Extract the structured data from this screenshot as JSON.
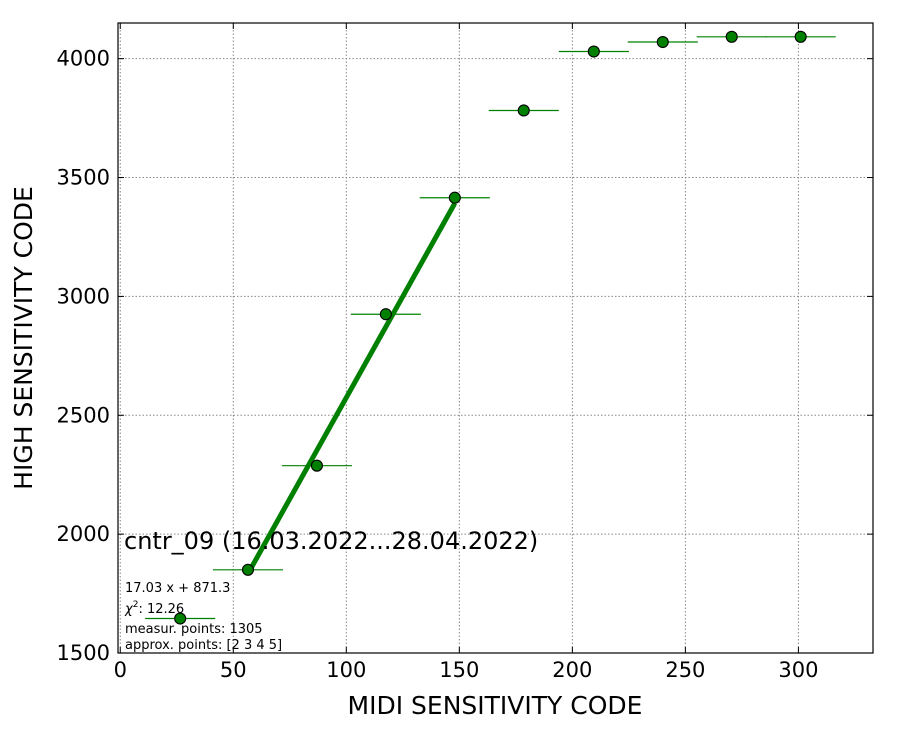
{
  "chart_data": {
    "type": "scatter",
    "title": "",
    "xlabel": "MIDI SENSITIVITY CODE",
    "ylabel": "HIGH SENSITIVITY CODE",
    "xlim": [
      -1,
      333
    ],
    "ylim": [
      1500,
      4150
    ],
    "x_ticks": [
      0,
      50,
      100,
      150,
      200,
      250,
      300
    ],
    "y_ticks": [
      1500,
      2000,
      2500,
      3000,
      3500,
      4000
    ],
    "grid": true,
    "colors": {
      "points": "#008000",
      "edge": "#000000",
      "fit": "#008000",
      "errbar": "#008000"
    },
    "points": [
      {
        "x": 26.5,
        "y": 1645,
        "xerr": 15.5
      },
      {
        "x": 56.5,
        "y": 1850,
        "xerr": 15.5
      },
      {
        "x": 87,
        "y": 2288,
        "xerr": 15.5
      },
      {
        "x": 117.5,
        "y": 2925,
        "xerr": 15.5
      },
      {
        "x": 148,
        "y": 3415,
        "xerr": 15.5
      },
      {
        "x": 178.5,
        "y": 3782,
        "xerr": 15.5
      },
      {
        "x": 209.5,
        "y": 4030,
        "xerr": 15.5
      },
      {
        "x": 240,
        "y": 4070,
        "xerr": 15.5
      },
      {
        "x": 270.5,
        "y": 4092,
        "xerr": 15.5
      },
      {
        "x": 301,
        "y": 4092,
        "xerr": 15.5
      }
    ],
    "fit_line": {
      "slope": 17.03,
      "intercept": 871.3,
      "x_range": [
        56.5,
        148
      ]
    },
    "annotation": {
      "title": "cntr_09 (16.03.2022...28.04.2022)",
      "equation": "17.03 x + 871.3",
      "chi_label": "χ",
      "chi_sup": "2",
      "chi_value": ": 12.26",
      "measur": "measur. points: 1305",
      "approx": "approx. points: [2 3 4 5]"
    }
  }
}
